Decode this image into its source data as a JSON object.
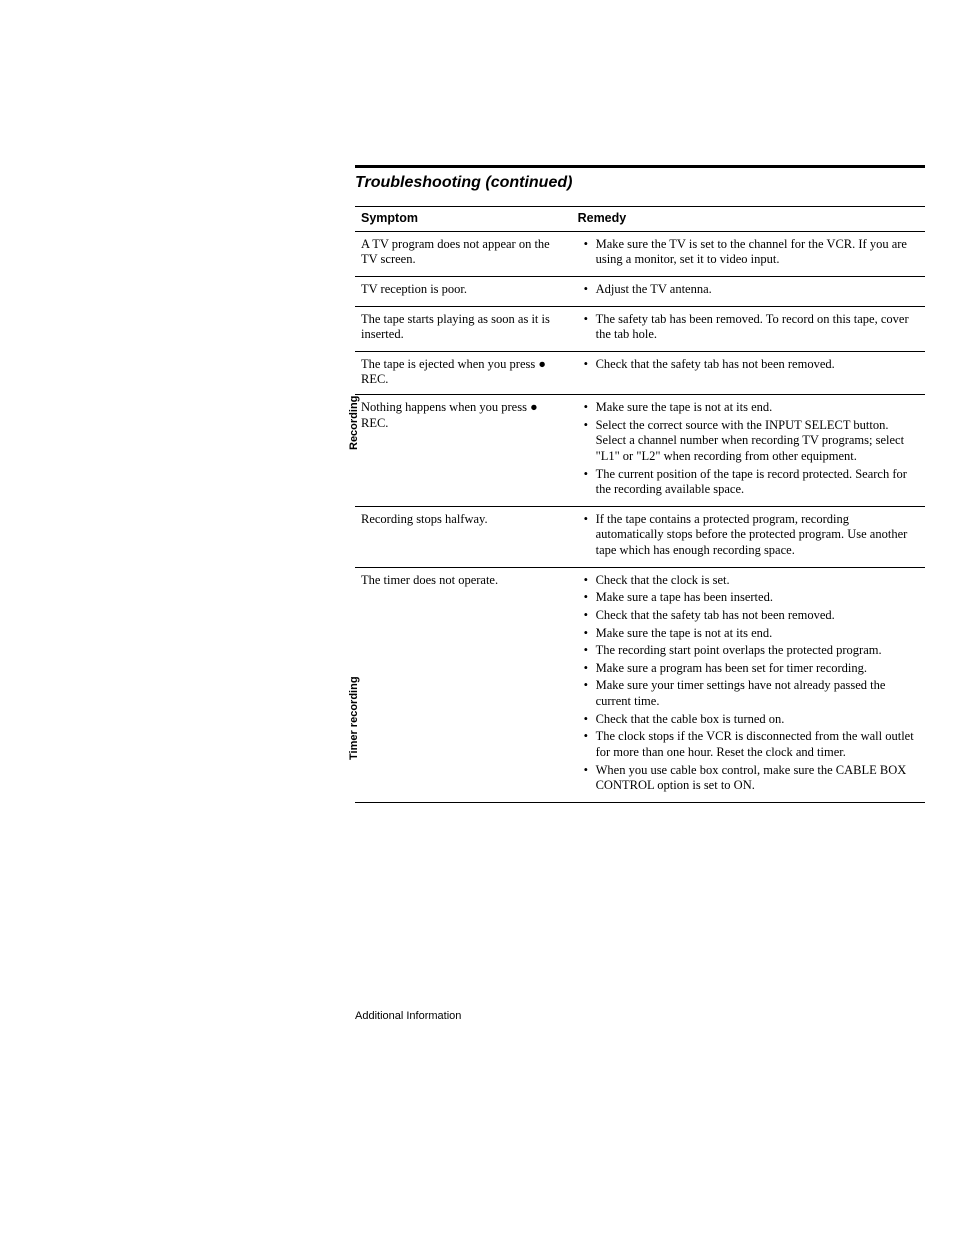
{
  "title": "Troubleshooting (continued)",
  "header": {
    "symptom": "Symptom",
    "remedy": "Remedy"
  },
  "sections": {
    "recording": {
      "label": "Recording",
      "rows": [
        {
          "symptom": "A TV program does not appear on the TV screen.",
          "remedy": [
            "Make sure the TV is set to the channel for the VCR. If you are using a monitor, set it to video input."
          ]
        },
        {
          "symptom": "TV reception is poor.",
          "remedy": [
            "Adjust the TV antenna."
          ]
        },
        {
          "symptom": "The tape starts playing as soon as it is inserted.",
          "remedy": [
            "The safety tab has been removed. To record on this tape, cover the tab hole."
          ]
        },
        {
          "symptom": "The tape is ejected when you press ● REC.",
          "remedy": [
            "Check that the safety tab has not been removed."
          ]
        },
        {
          "symptom": "Nothing happens when you press ● REC.",
          "remedy": [
            "Make sure the tape is not at its end.",
            "Select the correct source with the INPUT SELECT button. Select a channel number when recording TV programs; select \"L1\" or \"L2\" when recording from other equipment.",
            "The current position of the tape is record protected. Search for the recording available space."
          ]
        },
        {
          "symptom": "Recording stops halfway.",
          "remedy": [
            "If the tape contains a protected program, recording automatically stops before the protected program. Use another tape which has enough recording space."
          ]
        }
      ]
    },
    "timer": {
      "label": "Timer recording",
      "rows": [
        {
          "symptom": "The timer does not operate.",
          "remedy": [
            "Check that the clock is set.",
            "Make sure a tape has been inserted.",
            "Check that the safety tab has not been removed.",
            "Make sure the tape is not at its end.",
            "The recording start point overlaps the protected program.",
            "Make sure a program has been set for timer recording.",
            "Make sure your timer settings have not already passed the current time.",
            "Check that the cable box is turned on.",
            "The clock stops if the VCR is disconnected from the wall outlet for more than one hour. Reset the clock and timer.",
            "When you use cable box control, make sure the CABLE BOX CONTROL option is set to ON."
          ]
        }
      ]
    }
  },
  "footer": "Additional Information"
}
